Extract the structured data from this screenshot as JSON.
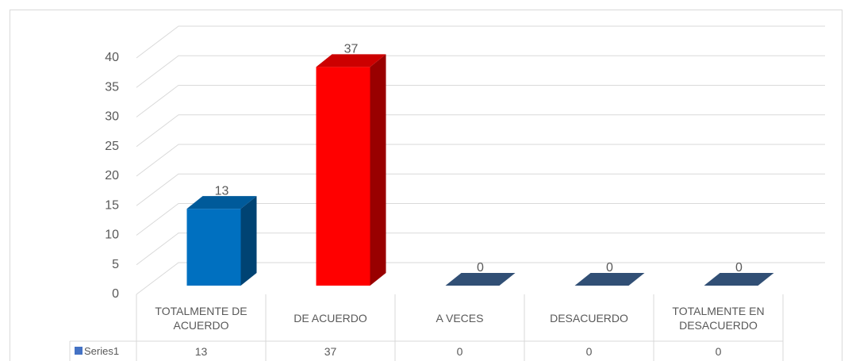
{
  "chart_data": {
    "type": "bar",
    "categories": [
      "TOTALMENTE DE ACUERDO",
      "DE ACUERDO",
      "A VECES",
      "DESACUERDO",
      "TOTALMENTE EN DESACUERDO"
    ],
    "series": [
      {
        "name": "Series1",
        "color": "#4472c4",
        "values": [
          13,
          37,
          0,
          0,
          0
        ]
      }
    ],
    "point_colors": [
      "#0070c0",
      "#ff0000",
      "#3d6392",
      "#3d6392",
      "#3d6392"
    ],
    "ylim": [
      0,
      40
    ],
    "yticks": [
      0,
      5,
      10,
      15,
      20,
      25,
      30,
      35,
      40
    ],
    "grid": true
  }
}
